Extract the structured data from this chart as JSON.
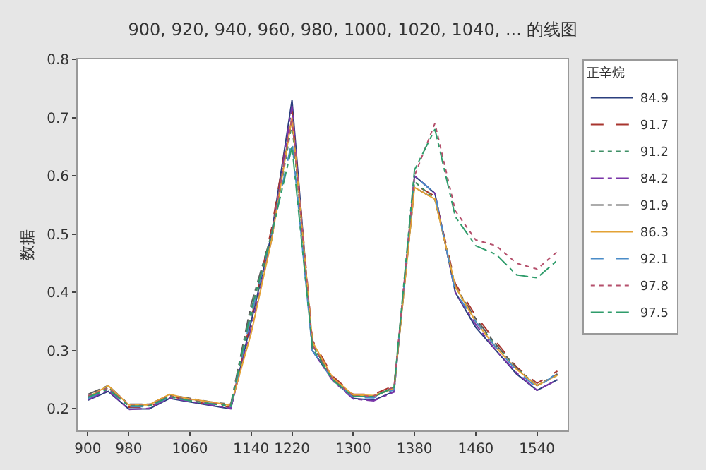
{
  "chart_data": {
    "type": "line",
    "title": "900, 920, 940, 960, 980, 1000, 1020, 1040, ... 的线图",
    "ylabel": "数据",
    "legend_title": "正辛烷",
    "legend": "right",
    "grid": false,
    "marker": "none",
    "categories": [
      "900",
      null,
      "980",
      null,
      null,
      "1060",
      null,
      null,
      "1140",
      null,
      "1220",
      null,
      null,
      "1300",
      null,
      null,
      "1380",
      null,
      null,
      "1460",
      null,
      null,
      "1540",
      null
    ],
    "ylim": [
      0.163,
      0.8
    ],
    "yticks": [
      0.2,
      0.3,
      0.4,
      0.5,
      0.6,
      0.7,
      0.8
    ],
    "series": [
      {
        "name": "84.9",
        "color": "#2b3f7e",
        "line_style": "solid",
        "values": [
          0.215,
          0.23,
          0.2,
          0.2,
          0.218,
          0.212,
          0.206,
          0.2,
          0.35,
          0.5,
          0.73,
          0.3,
          0.25,
          0.218,
          0.215,
          0.23,
          0.6,
          0.57,
          0.4,
          0.34,
          0.3,
          0.26,
          0.232,
          0.25
        ]
      },
      {
        "name": "91.7",
        "color": "#a8352e",
        "line_style": "dashed",
        "values": [
          0.219,
          0.237,
          0.203,
          0.203,
          0.223,
          0.213,
          0.208,
          0.203,
          0.355,
          0.51,
          0.715,
          0.318,
          0.256,
          0.225,
          0.225,
          0.24,
          0.585,
          0.565,
          0.415,
          0.36,
          0.315,
          0.272,
          0.244,
          0.265
        ]
      },
      {
        "name": "91.2",
        "color": "#3f8f66",
        "line_style": "dotted",
        "values": [
          0.222,
          0.238,
          0.207,
          0.206,
          0.222,
          0.216,
          0.211,
          0.207,
          0.36,
          0.49,
          0.69,
          0.31,
          0.252,
          0.222,
          0.221,
          0.237,
          0.59,
          0.56,
          0.41,
          0.35,
          0.31,
          0.27,
          0.24,
          0.258
        ]
      },
      {
        "name": "84.2",
        "color": "#7a35a8",
        "line_style": "dashdot",
        "values": [
          0.216,
          0.232,
          0.199,
          0.201,
          0.219,
          0.213,
          0.207,
          0.201,
          0.34,
          0.49,
          0.72,
          0.3,
          0.248,
          0.217,
          0.214,
          0.229,
          0.6,
          0.57,
          0.4,
          0.345,
          0.3,
          0.262,
          0.232,
          0.25
        ]
      },
      {
        "name": "91.9",
        "color": "#5a5a5a",
        "line_style": "dashdot",
        "values": [
          0.225,
          0.24,
          0.208,
          0.208,
          0.224,
          0.218,
          0.212,
          0.208,
          0.38,
          0.5,
          0.7,
          0.31,
          0.252,
          0.223,
          0.222,
          0.236,
          0.58,
          0.56,
          0.41,
          0.355,
          0.31,
          0.27,
          0.24,
          0.26
        ]
      },
      {
        "name": "86.3",
        "color": "#e3a235",
        "line_style": "solid",
        "values": [
          0.22,
          0.24,
          0.207,
          0.207,
          0.225,
          0.217,
          0.212,
          0.206,
          0.33,
          0.49,
          0.7,
          0.315,
          0.253,
          0.224,
          0.223,
          0.235,
          0.58,
          0.56,
          0.41,
          0.35,
          0.305,
          0.268,
          0.24,
          0.258
        ]
      },
      {
        "name": "92.1",
        "color": "#4a8cc8",
        "line_style": "dashed",
        "values": [
          0.218,
          0.234,
          0.204,
          0.204,
          0.22,
          0.214,
          0.209,
          0.204,
          0.36,
          0.5,
          0.66,
          0.3,
          0.25,
          0.22,
          0.219,
          0.233,
          0.6,
          0.57,
          0.4,
          0.35,
          0.305,
          0.266,
          0.236,
          0.262
        ]
      },
      {
        "name": "97.8",
        "color": "#b5506c",
        "line_style": "dotted",
        "values": [
          0.222,
          0.236,
          0.206,
          0.206,
          0.222,
          0.215,
          0.21,
          0.206,
          0.37,
          0.5,
          0.7,
          0.31,
          0.25,
          0.222,
          0.222,
          0.238,
          0.6,
          0.69,
          0.54,
          0.49,
          0.48,
          0.45,
          0.44,
          0.47
        ]
      },
      {
        "name": "97.5",
        "color": "#2f9c6b",
        "line_style": "dashdot",
        "values": [
          0.22,
          0.234,
          0.205,
          0.205,
          0.221,
          0.214,
          0.209,
          0.205,
          0.37,
          0.5,
          0.65,
          0.305,
          0.249,
          0.221,
          0.221,
          0.237,
          0.61,
          0.68,
          0.53,
          0.48,
          0.465,
          0.43,
          0.425,
          0.455
        ]
      }
    ]
  }
}
